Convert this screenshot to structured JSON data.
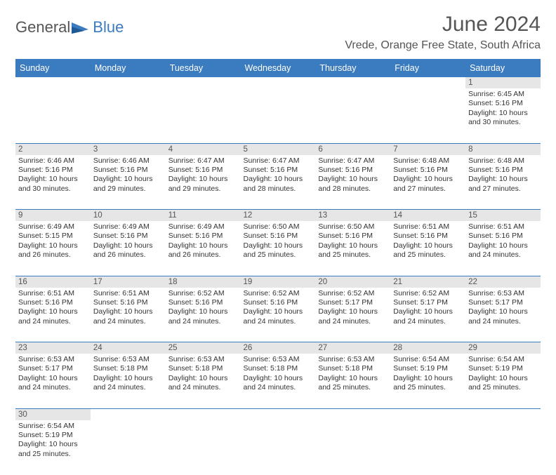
{
  "brand": {
    "part1": "General",
    "part2": "Blue"
  },
  "title": "June 2024",
  "location": "Vrede, Orange Free State, South Africa",
  "weekday_header_bg": "#3b7bbf",
  "weekday_header_fg": "#ffffff",
  "daynum_bg": "#e6e6e6",
  "weekdays": [
    "Sunday",
    "Monday",
    "Tuesday",
    "Wednesday",
    "Thursday",
    "Friday",
    "Saturday"
  ],
  "weeks": [
    [
      null,
      null,
      null,
      null,
      null,
      null,
      {
        "n": "1",
        "sunrise": "6:45 AM",
        "sunset": "5:16 PM",
        "daylight": "10 hours and 30 minutes."
      }
    ],
    [
      {
        "n": "2",
        "sunrise": "6:46 AM",
        "sunset": "5:16 PM",
        "daylight": "10 hours and 30 minutes."
      },
      {
        "n": "3",
        "sunrise": "6:46 AM",
        "sunset": "5:16 PM",
        "daylight": "10 hours and 29 minutes."
      },
      {
        "n": "4",
        "sunrise": "6:47 AM",
        "sunset": "5:16 PM",
        "daylight": "10 hours and 29 minutes."
      },
      {
        "n": "5",
        "sunrise": "6:47 AM",
        "sunset": "5:16 PM",
        "daylight": "10 hours and 28 minutes."
      },
      {
        "n": "6",
        "sunrise": "6:47 AM",
        "sunset": "5:16 PM",
        "daylight": "10 hours and 28 minutes."
      },
      {
        "n": "7",
        "sunrise": "6:48 AM",
        "sunset": "5:16 PM",
        "daylight": "10 hours and 27 minutes."
      },
      {
        "n": "8",
        "sunrise": "6:48 AM",
        "sunset": "5:16 PM",
        "daylight": "10 hours and 27 minutes."
      }
    ],
    [
      {
        "n": "9",
        "sunrise": "6:49 AM",
        "sunset": "5:15 PM",
        "daylight": "10 hours and 26 minutes."
      },
      {
        "n": "10",
        "sunrise": "6:49 AM",
        "sunset": "5:16 PM",
        "daylight": "10 hours and 26 minutes."
      },
      {
        "n": "11",
        "sunrise": "6:49 AM",
        "sunset": "5:16 PM",
        "daylight": "10 hours and 26 minutes."
      },
      {
        "n": "12",
        "sunrise": "6:50 AM",
        "sunset": "5:16 PM",
        "daylight": "10 hours and 25 minutes."
      },
      {
        "n": "13",
        "sunrise": "6:50 AM",
        "sunset": "5:16 PM",
        "daylight": "10 hours and 25 minutes."
      },
      {
        "n": "14",
        "sunrise": "6:51 AM",
        "sunset": "5:16 PM",
        "daylight": "10 hours and 25 minutes."
      },
      {
        "n": "15",
        "sunrise": "6:51 AM",
        "sunset": "5:16 PM",
        "daylight": "10 hours and 24 minutes."
      }
    ],
    [
      {
        "n": "16",
        "sunrise": "6:51 AM",
        "sunset": "5:16 PM",
        "daylight": "10 hours and 24 minutes."
      },
      {
        "n": "17",
        "sunrise": "6:51 AM",
        "sunset": "5:16 PM",
        "daylight": "10 hours and 24 minutes."
      },
      {
        "n": "18",
        "sunrise": "6:52 AM",
        "sunset": "5:16 PM",
        "daylight": "10 hours and 24 minutes."
      },
      {
        "n": "19",
        "sunrise": "6:52 AM",
        "sunset": "5:16 PM",
        "daylight": "10 hours and 24 minutes."
      },
      {
        "n": "20",
        "sunrise": "6:52 AM",
        "sunset": "5:17 PM",
        "daylight": "10 hours and 24 minutes."
      },
      {
        "n": "21",
        "sunrise": "6:52 AM",
        "sunset": "5:17 PM",
        "daylight": "10 hours and 24 minutes."
      },
      {
        "n": "22",
        "sunrise": "6:53 AM",
        "sunset": "5:17 PM",
        "daylight": "10 hours and 24 minutes."
      }
    ],
    [
      {
        "n": "23",
        "sunrise": "6:53 AM",
        "sunset": "5:17 PM",
        "daylight": "10 hours and 24 minutes."
      },
      {
        "n": "24",
        "sunrise": "6:53 AM",
        "sunset": "5:18 PM",
        "daylight": "10 hours and 24 minutes."
      },
      {
        "n": "25",
        "sunrise": "6:53 AM",
        "sunset": "5:18 PM",
        "daylight": "10 hours and 24 minutes."
      },
      {
        "n": "26",
        "sunrise": "6:53 AM",
        "sunset": "5:18 PM",
        "daylight": "10 hours and 24 minutes."
      },
      {
        "n": "27",
        "sunrise": "6:53 AM",
        "sunset": "5:18 PM",
        "daylight": "10 hours and 25 minutes."
      },
      {
        "n": "28",
        "sunrise": "6:54 AM",
        "sunset": "5:19 PM",
        "daylight": "10 hours and 25 minutes."
      },
      {
        "n": "29",
        "sunrise": "6:54 AM",
        "sunset": "5:19 PM",
        "daylight": "10 hours and 25 minutes."
      }
    ],
    [
      {
        "n": "30",
        "sunrise": "6:54 AM",
        "sunset": "5:19 PM",
        "daylight": "10 hours and 25 minutes."
      },
      null,
      null,
      null,
      null,
      null,
      null
    ]
  ],
  "labels": {
    "sunrise": "Sunrise:",
    "sunset": "Sunset:",
    "daylight": "Daylight:"
  }
}
